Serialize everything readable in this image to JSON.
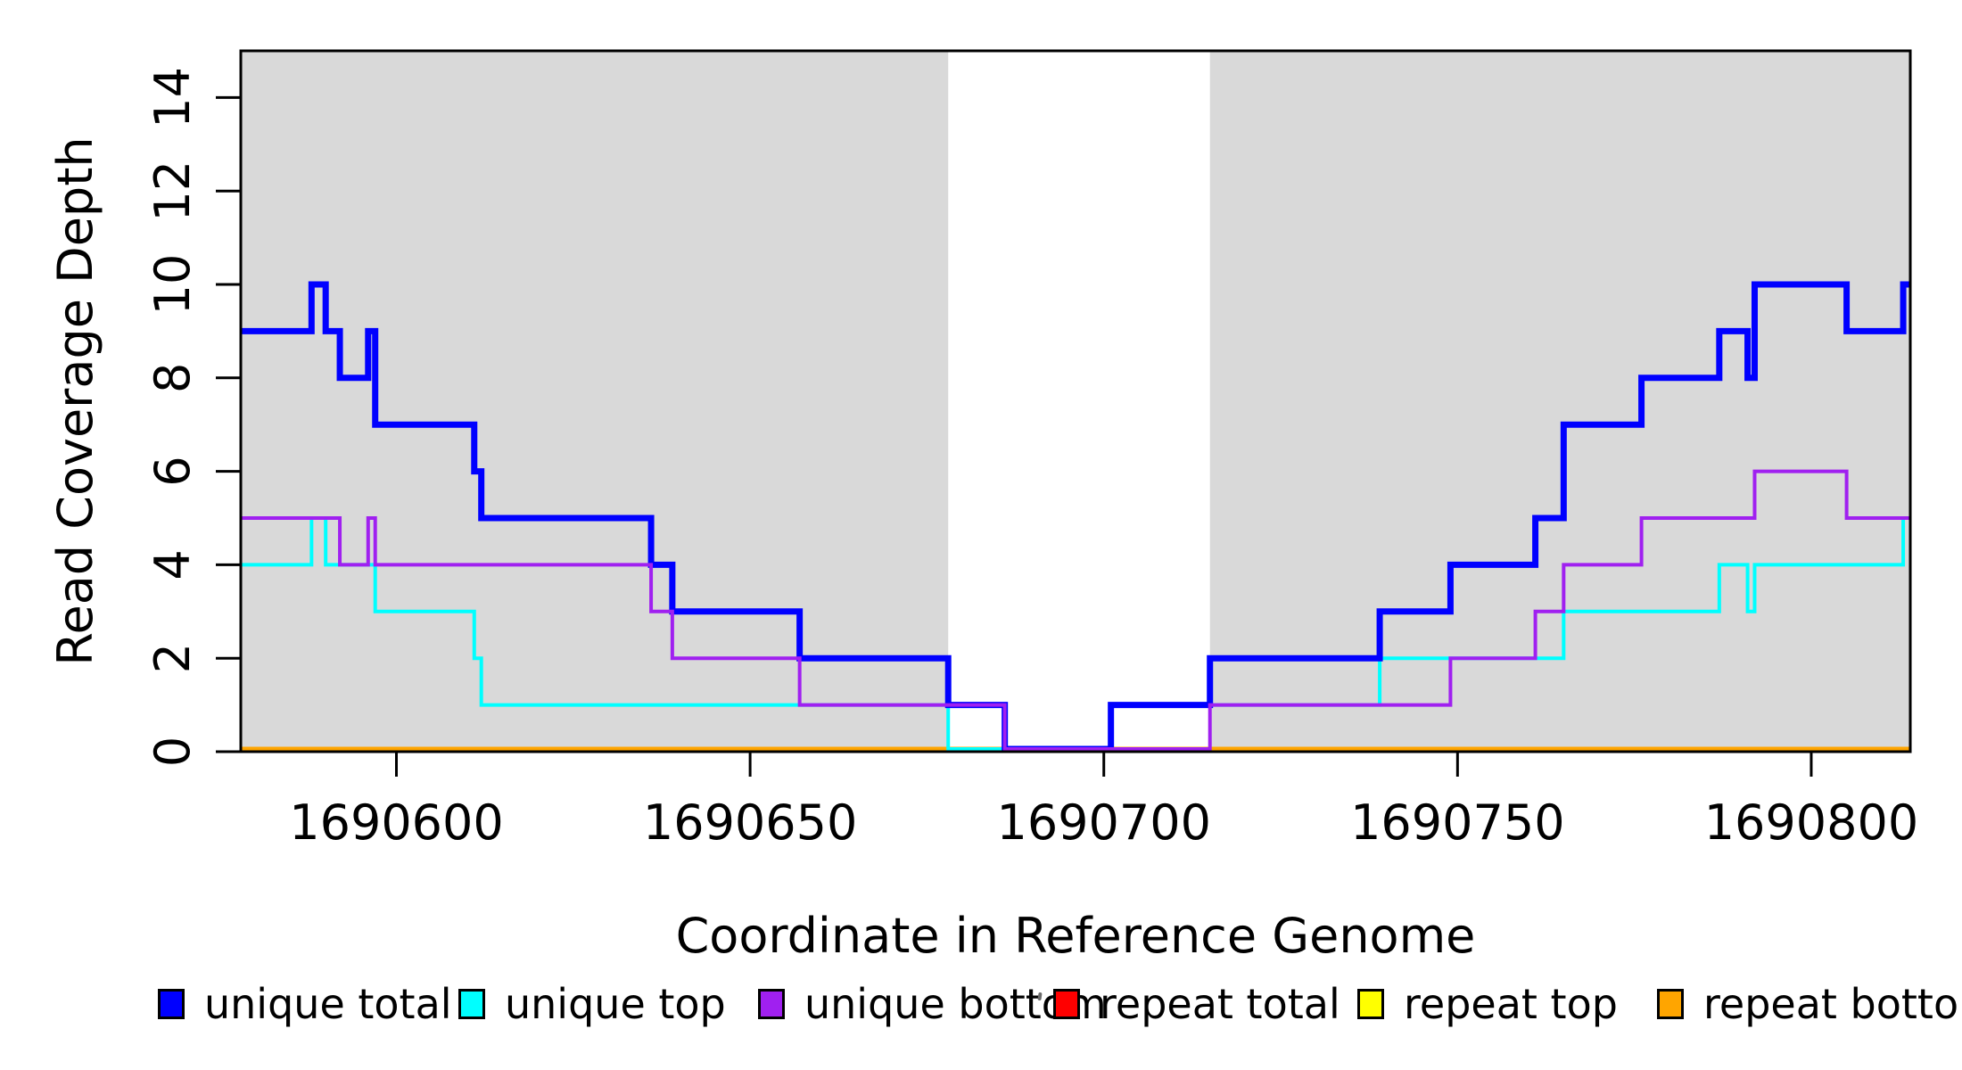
{
  "chart_data": {
    "type": "line",
    "subtype": "step",
    "title": "",
    "xlabel": "Coordinate in Reference Genome",
    "ylabel": "Read Coverage Depth",
    "xlim": [
      1690578,
      1690814
    ],
    "ylim": [
      0,
      15
    ],
    "xticks": [
      1690600,
      1690650,
      1690700,
      1690750,
      1690800
    ],
    "yticks": [
      0,
      2,
      4,
      6,
      8,
      10,
      12,
      14
    ],
    "grid": false,
    "legend_position": "bottom",
    "background_color": "#FFFFFF",
    "shaded_regions": [
      {
        "name": "repeat-masked-left",
        "x0": 1690578,
        "x1": 1690678,
        "color": "#D9D9D9"
      },
      {
        "name": "repeat-masked-right",
        "x0": 1690715,
        "x1": 1690814,
        "color": "#D9D9D9"
      }
    ],
    "draw_order": [
      "repeat total",
      "repeat top",
      "repeat bottom",
      "unique top",
      "unique total",
      "unique bottom"
    ],
    "series": [
      {
        "name": "unique total",
        "color": "#0000FF",
        "line_width": 7,
        "breakpoints": [
          1690578,
          1690588,
          1690590,
          1690592,
          1690596,
          1690597,
          1690611,
          1690612,
          1690636,
          1690639,
          1690657,
          1690678,
          1690686,
          1690701,
          1690715,
          1690739,
          1690749,
          1690761,
          1690765,
          1690776,
          1690787,
          1690791,
          1690792,
          1690805,
          1690813,
          1690814
        ],
        "values": [
          9,
          10,
          9,
          8,
          9,
          7,
          6,
          5,
          4,
          3,
          2,
          1,
          0,
          1,
          2,
          3,
          4,
          5,
          7,
          8,
          9,
          8,
          10,
          9,
          10
        ]
      },
      {
        "name": "unique top",
        "color": "#00FFFF",
        "line_width": 4,
        "breakpoints": [
          1690578,
          1690588,
          1690590,
          1690597,
          1690611,
          1690612,
          1690678,
          1690701,
          1690739,
          1690765,
          1690787,
          1690791,
          1690792,
          1690813,
          1690814
        ],
        "values": [
          4,
          5,
          4,
          3,
          2,
          1,
          0,
          1,
          2,
          3,
          4,
          3,
          4,
          5
        ]
      },
      {
        "name": "unique bottom",
        "color": "#A020F0",
        "line_width": 4,
        "breakpoints": [
          1690578,
          1690592,
          1690596,
          1690597,
          1690636,
          1690639,
          1690657,
          1690686,
          1690715,
          1690749,
          1690761,
          1690765,
          1690776,
          1690792,
          1690805,
          1690814
        ],
        "values": [
          5,
          4,
          5,
          4,
          3,
          2,
          1,
          0,
          1,
          2,
          3,
          4,
          5,
          6,
          5
        ]
      },
      {
        "name": "repeat total",
        "color": "#FF0000",
        "line_width": 4,
        "breakpoints": [
          1690578,
          1690814
        ],
        "values": [
          0
        ]
      },
      {
        "name": "repeat top",
        "color": "#FFFF00",
        "line_width": 4,
        "breakpoints": [
          1690578,
          1690814
        ],
        "values": [
          0
        ]
      },
      {
        "name": "repeat bottom",
        "color": "#FFA500",
        "line_width": 5,
        "breakpoints": [
          1690578,
          1690814
        ],
        "values": [
          0
        ]
      }
    ]
  },
  "legend": {
    "items": [
      {
        "label": "unique total",
        "color": "#0000FF"
      },
      {
        "label": "unique top",
        "color": "#00FFFF"
      },
      {
        "label": "unique bottom",
        "color": "#A020F0"
      },
      {
        "label": "repeat total",
        "color": "#FF0000"
      },
      {
        "label": "repeat top",
        "color": "#FFFF00"
      },
      {
        "label": "repeat bottom",
        "color": "#FFA500"
      }
    ]
  }
}
